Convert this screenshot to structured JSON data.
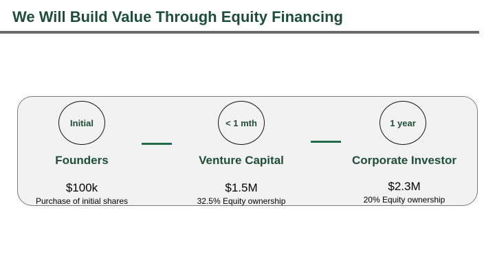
{
  "slide": {
    "title": "We Will Build Value Through Equity Financing"
  },
  "stages": [
    {
      "badge": "Initial",
      "name": "Founders",
      "amount": "$100k",
      "description": "Purchase of initial shares"
    },
    {
      "badge": "< 1 mth",
      "name": "Venture Capital",
      "amount": "$1.5M",
      "description": "32.5% Equity ownership"
    },
    {
      "badge": "1 year",
      "name": "Corporate Investor",
      "amount": "$2.3M",
      "description": "20% Equity ownership"
    }
  ],
  "colors": {
    "accent_green": "#1e4d3b",
    "connector_green": "#1e6b4a",
    "panel_fill": "#f2f2f2",
    "rule_gray": "#6b6b6b"
  }
}
